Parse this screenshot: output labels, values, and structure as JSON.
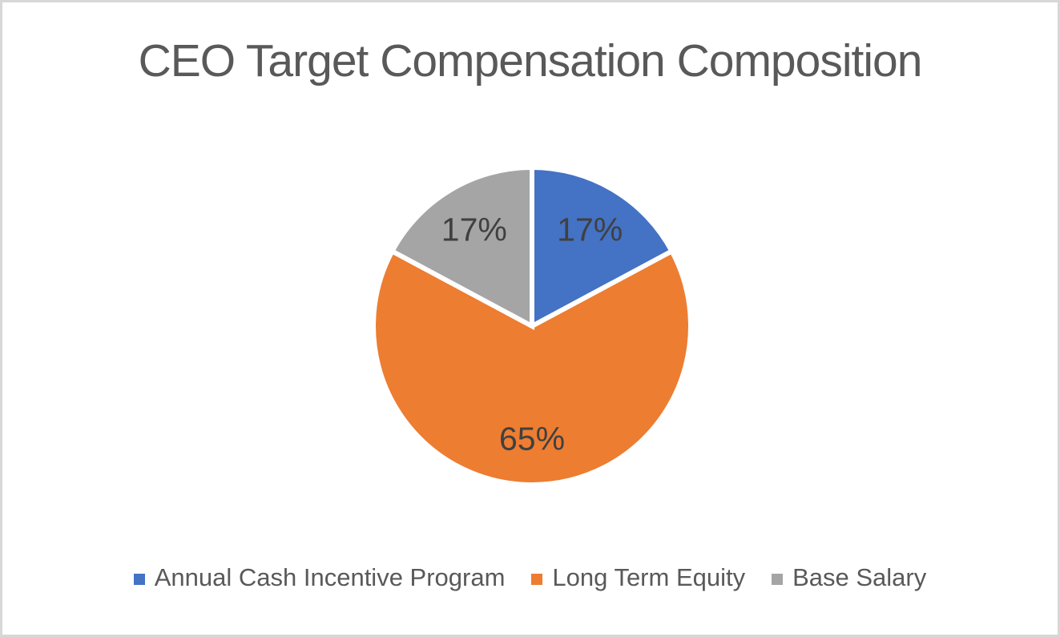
{
  "chart_data": {
    "type": "pie",
    "title": "CEO Target Compensation Composition",
    "slices": [
      {
        "label": "Annual Cash Incentive Program",
        "value": 17,
        "display": "17%",
        "color": "#4472C4"
      },
      {
        "label": "Long Term Equity",
        "value": 65,
        "display": "65%",
        "color": "#ED7D31"
      },
      {
        "label": "Base Salary",
        "value": 17,
        "display": "17%",
        "color": "#A5A5A5"
      }
    ],
    "start_angle_deg": 0,
    "direction": "clockwise",
    "label_format": "percent",
    "legend_position": "bottom",
    "title_color": "#595959",
    "data_label_color": "#404040",
    "separator_color": "#FFFFFF"
  }
}
